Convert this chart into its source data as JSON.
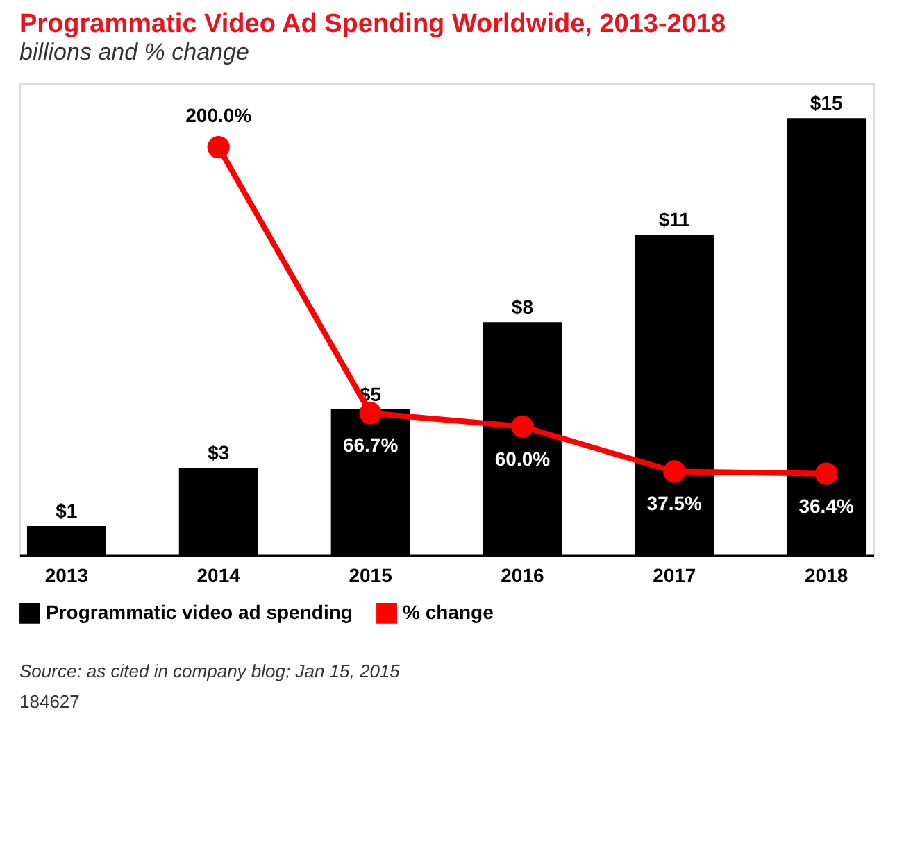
{
  "chart_data": {
    "type": "bar",
    "title": "Programmatic Video Ad Spending Worldwide, 2013-2018",
    "subtitle": "billions and % change",
    "categories": [
      "2013",
      "2014",
      "2015",
      "2016",
      "2017",
      "2018"
    ],
    "series": [
      {
        "name": "Programmatic video ad spending",
        "color": "#000000",
        "values": [
          1,
          3,
          5,
          8,
          11,
          15
        ],
        "value_labels": [
          "$1",
          "$3",
          "$5",
          "$8",
          "$11",
          "$15"
        ]
      },
      {
        "name": "% change",
        "type": "line",
        "axis": "y2",
        "color": "#ff0000",
        "values": [
          null,
          200.0,
          66.7,
          60.0,
          37.5,
          36.4
        ],
        "value_labels": [
          null,
          "200.0%",
          "66.7%",
          "60.0%",
          "37.5%",
          "36.4%"
        ]
      }
    ],
    "ylim": [
      0,
      16.2
    ],
    "y2lim": [
      -4.4,
      232
    ],
    "tick_labels": "x",
    "grid": false,
    "legend": "bottom",
    "marker": "circle",
    "line_style": "solid",
    "annotations": [
      "Source: as cited in company blog; Jan 15, 2015",
      "184627"
    ]
  }
}
